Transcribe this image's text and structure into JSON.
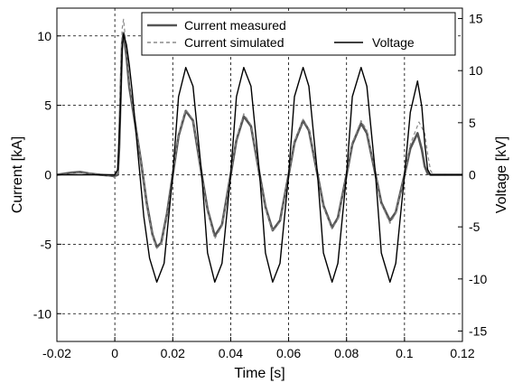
{
  "chart_data": {
    "type": "line",
    "xlabel": "Time [s]",
    "ylabel_left": "Current [kA]",
    "ylabel_right": "Voltage [kV]",
    "xlim": [
      -0.02,
      0.12
    ],
    "ylim_left": [
      -12,
      12
    ],
    "ylim_right": [
      -16,
      16
    ],
    "x_ticks": [
      -0.02,
      0,
      0.02,
      0.04,
      0.06,
      0.08,
      0.1,
      0.12
    ],
    "x_tick_labels": [
      "-0.02",
      "0",
      "0.02",
      "0.04",
      "0.06",
      "0.08",
      "0.1",
      "0.12"
    ],
    "y_left_ticks": [
      -10,
      -5,
      0,
      5,
      10
    ],
    "y_left_tick_labels": [
      "-10",
      "-5",
      "0",
      "5",
      "10"
    ],
    "y_right_ticks": [
      -15,
      -10,
      -5,
      0,
      5,
      10,
      15
    ],
    "y_right_tick_labels": [
      "-15",
      "-10",
      "-5",
      "0",
      "5",
      "10",
      "15"
    ],
    "grid": true,
    "legend_position": "top-right",
    "series": [
      {
        "name": "Current measured",
        "axis": "left",
        "color": "#555555",
        "style": "solid",
        "x": [
          -0.02,
          -0.015,
          -0.012,
          -0.009,
          -0.005,
          -0.002,
          0.0,
          0.001,
          0.0015,
          0.002,
          0.0025,
          0.003,
          0.004,
          0.005,
          0.007,
          0.009,
          0.011,
          0.013,
          0.0145,
          0.016,
          0.018,
          0.02,
          0.022,
          0.0245,
          0.027,
          0.03,
          0.032,
          0.0345,
          0.037,
          0.04,
          0.042,
          0.0445,
          0.047,
          0.05,
          0.052,
          0.0545,
          0.057,
          0.06,
          0.062,
          0.065,
          0.067,
          0.07,
          0.072,
          0.075,
          0.077,
          0.08,
          0.082,
          0.085,
          0.087,
          0.09,
          0.092,
          0.095,
          0.097,
          0.1,
          0.102,
          0.1045,
          0.106,
          0.107,
          0.108,
          0.109,
          0.11,
          0.12
        ],
        "values": [
          0.0,
          0.15,
          0.2,
          0.1,
          0.0,
          -0.05,
          -0.1,
          0.0,
          2.0,
          6.0,
          9.5,
          10.2,
          8.6,
          6.3,
          3.7,
          1.0,
          -2.0,
          -4.3,
          -5.2,
          -4.9,
          -2.8,
          0.0,
          2.8,
          4.6,
          3.9,
          0.0,
          -2.5,
          -4.4,
          -3.6,
          0.0,
          2.5,
          4.2,
          3.5,
          0.0,
          -2.3,
          -4.0,
          -3.3,
          0.0,
          2.3,
          3.9,
          3.2,
          0.0,
          -2.2,
          -3.8,
          -3.1,
          0.0,
          2.2,
          3.7,
          3.0,
          0.0,
          -2.0,
          -3.3,
          -2.7,
          0.0,
          1.9,
          3.0,
          1.8,
          0.6,
          0.1,
          0.0,
          0.0,
          0.0
        ]
      },
      {
        "name": "Current simulated",
        "axis": "left",
        "color": "#8a8a8a",
        "style": "dashed",
        "x": [
          -0.02,
          -0.015,
          -0.012,
          -0.009,
          -0.005,
          -0.002,
          0.0,
          0.001,
          0.0015,
          0.002,
          0.0025,
          0.003,
          0.004,
          0.005,
          0.007,
          0.009,
          0.011,
          0.013,
          0.0145,
          0.016,
          0.018,
          0.02,
          0.022,
          0.0245,
          0.027,
          0.03,
          0.032,
          0.0345,
          0.037,
          0.04,
          0.042,
          0.0445,
          0.047,
          0.05,
          0.052,
          0.0545,
          0.057,
          0.06,
          0.062,
          0.065,
          0.067,
          0.07,
          0.072,
          0.075,
          0.077,
          0.08,
          0.082,
          0.085,
          0.087,
          0.09,
          0.092,
          0.095,
          0.097,
          0.1,
          0.102,
          0.105,
          0.107,
          0.108,
          0.109,
          0.11,
          0.12
        ],
        "values": [
          0.0,
          0.1,
          0.15,
          0.1,
          0.0,
          -0.1,
          -0.2,
          0.0,
          2.5,
          7.0,
          10.5,
          11.2,
          9.0,
          6.6,
          3.8,
          1.0,
          -2.0,
          -4.4,
          -5.3,
          -5.0,
          -2.9,
          0.0,
          2.9,
          4.7,
          4.0,
          0.0,
          -2.6,
          -4.6,
          -3.7,
          0.0,
          2.6,
          4.4,
          3.6,
          0.0,
          -2.4,
          -4.1,
          -3.4,
          0.0,
          2.4,
          4.0,
          3.3,
          0.0,
          -2.3,
          -3.9,
          -3.2,
          0.0,
          2.3,
          3.9,
          3.2,
          0.0,
          -2.1,
          -3.5,
          -2.8,
          0.0,
          2.2,
          3.8,
          3.0,
          1.5,
          0.3,
          0.0,
          0.0
        ]
      },
      {
        "name": "Voltage",
        "axis": "right",
        "color": "#000000",
        "style": "solid",
        "x": [
          -0.02,
          -0.01,
          -0.005,
          -0.002,
          0.0,
          0.001,
          0.002,
          0.0025,
          0.003,
          0.004,
          0.005,
          0.006,
          0.008,
          0.01,
          0.012,
          0.0145,
          0.017,
          0.02,
          0.022,
          0.0245,
          0.027,
          0.03,
          0.032,
          0.0345,
          0.037,
          0.04,
          0.042,
          0.0445,
          0.047,
          0.05,
          0.052,
          0.0545,
          0.057,
          0.06,
          0.062,
          0.065,
          0.067,
          0.07,
          0.072,
          0.075,
          0.077,
          0.08,
          0.082,
          0.085,
          0.087,
          0.09,
          0.092,
          0.095,
          0.097,
          0.1,
          0.102,
          0.1045,
          0.106,
          0.107,
          0.108,
          0.109,
          0.11,
          0.12
        ],
        "values": [
          0.0,
          0.0,
          0.0,
          0.0,
          0.0,
          0.5,
          7.0,
          12.0,
          13.5,
          12.5,
          10.5,
          8.0,
          2.0,
          -4.0,
          -8.0,
          -10.3,
          -8.5,
          0.0,
          7.5,
          10.3,
          8.5,
          0.0,
          -7.5,
          -10.3,
          -8.5,
          0.0,
          7.5,
          10.3,
          8.5,
          0.0,
          -7.5,
          -10.3,
          -8.5,
          0.0,
          7.5,
          10.3,
          8.5,
          0.0,
          -7.5,
          -10.3,
          -8.5,
          0.0,
          7.5,
          10.3,
          8.5,
          0.0,
          -7.5,
          -10.3,
          -8.5,
          0.0,
          6.0,
          9.0,
          6.5,
          3.0,
          0.5,
          0.0,
          0.0,
          0.0
        ]
      }
    ]
  }
}
